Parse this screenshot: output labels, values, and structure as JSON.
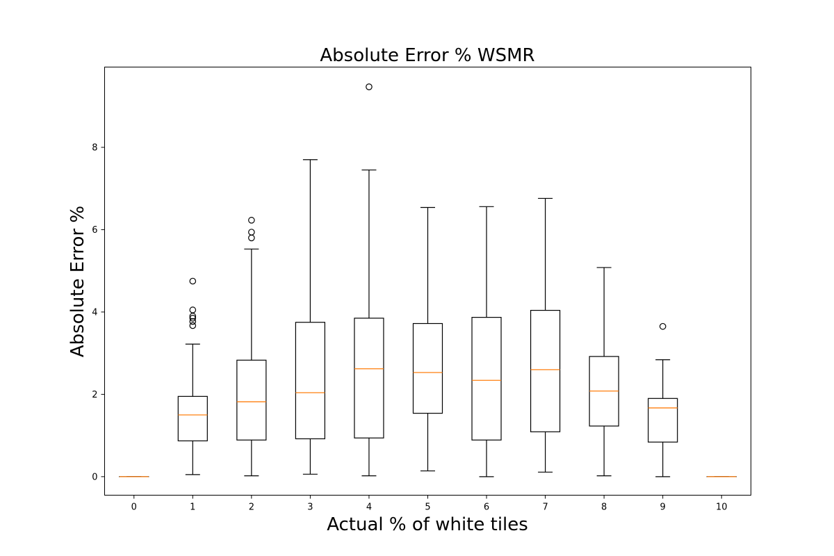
{
  "chart_data": {
    "type": "box",
    "title": "Absolute Error % WSMR",
    "xlabel": "Actual % of white tiles",
    "ylabel": "Absolute Error %",
    "ylim": [
      -0.45,
      9.95
    ],
    "yticks": [
      "0",
      "2",
      "4",
      "6",
      "8"
    ],
    "grid": false,
    "colors": {
      "box": "#000000",
      "median": "#ff7f0e"
    },
    "categories": [
      "0",
      "1",
      "2",
      "3",
      "4",
      "5",
      "6",
      "7",
      "8",
      "9",
      "10"
    ],
    "boxes": [
      {
        "whislo": 0.0,
        "q1": 0.0,
        "med": 0.0,
        "q3": 0.0,
        "whishi": 0.0,
        "fliers": []
      },
      {
        "whislo": 0.05,
        "q1": 0.87,
        "med": 1.5,
        "q3": 1.95,
        "whishi": 3.22,
        "fliers": [
          3.67,
          3.77,
          3.85,
          3.9,
          4.05,
          4.75
        ]
      },
      {
        "whislo": 0.02,
        "q1": 0.89,
        "med": 1.82,
        "q3": 2.83,
        "whishi": 5.53,
        "fliers": [
          5.8,
          5.94,
          6.23
        ]
      },
      {
        "whislo": 0.06,
        "q1": 0.92,
        "med": 2.04,
        "q3": 3.75,
        "whishi": 7.7,
        "fliers": []
      },
      {
        "whislo": 0.02,
        "q1": 0.94,
        "med": 2.62,
        "q3": 3.85,
        "whishi": 7.45,
        "fliers": [
          9.47
        ]
      },
      {
        "whislo": 0.14,
        "q1": 1.54,
        "med": 2.53,
        "q3": 3.72,
        "whishi": 6.54,
        "fliers": []
      },
      {
        "whislo": 0.0,
        "q1": 0.89,
        "med": 2.34,
        "q3": 3.87,
        "whishi": 6.56,
        "fliers": []
      },
      {
        "whislo": 0.11,
        "q1": 1.09,
        "med": 2.6,
        "q3": 4.04,
        "whishi": 6.76,
        "fliers": []
      },
      {
        "whislo": 0.02,
        "q1": 1.23,
        "med": 2.08,
        "q3": 2.92,
        "whishi": 5.08,
        "fliers": []
      },
      {
        "whislo": 0.0,
        "q1": 0.84,
        "med": 1.67,
        "q3": 1.9,
        "whishi": 2.84,
        "fliers": [
          3.65
        ]
      },
      {
        "whislo": 0.0,
        "q1": 0.0,
        "med": 0.0,
        "q3": 0.0,
        "whishi": 0.0,
        "fliers": []
      }
    ]
  }
}
